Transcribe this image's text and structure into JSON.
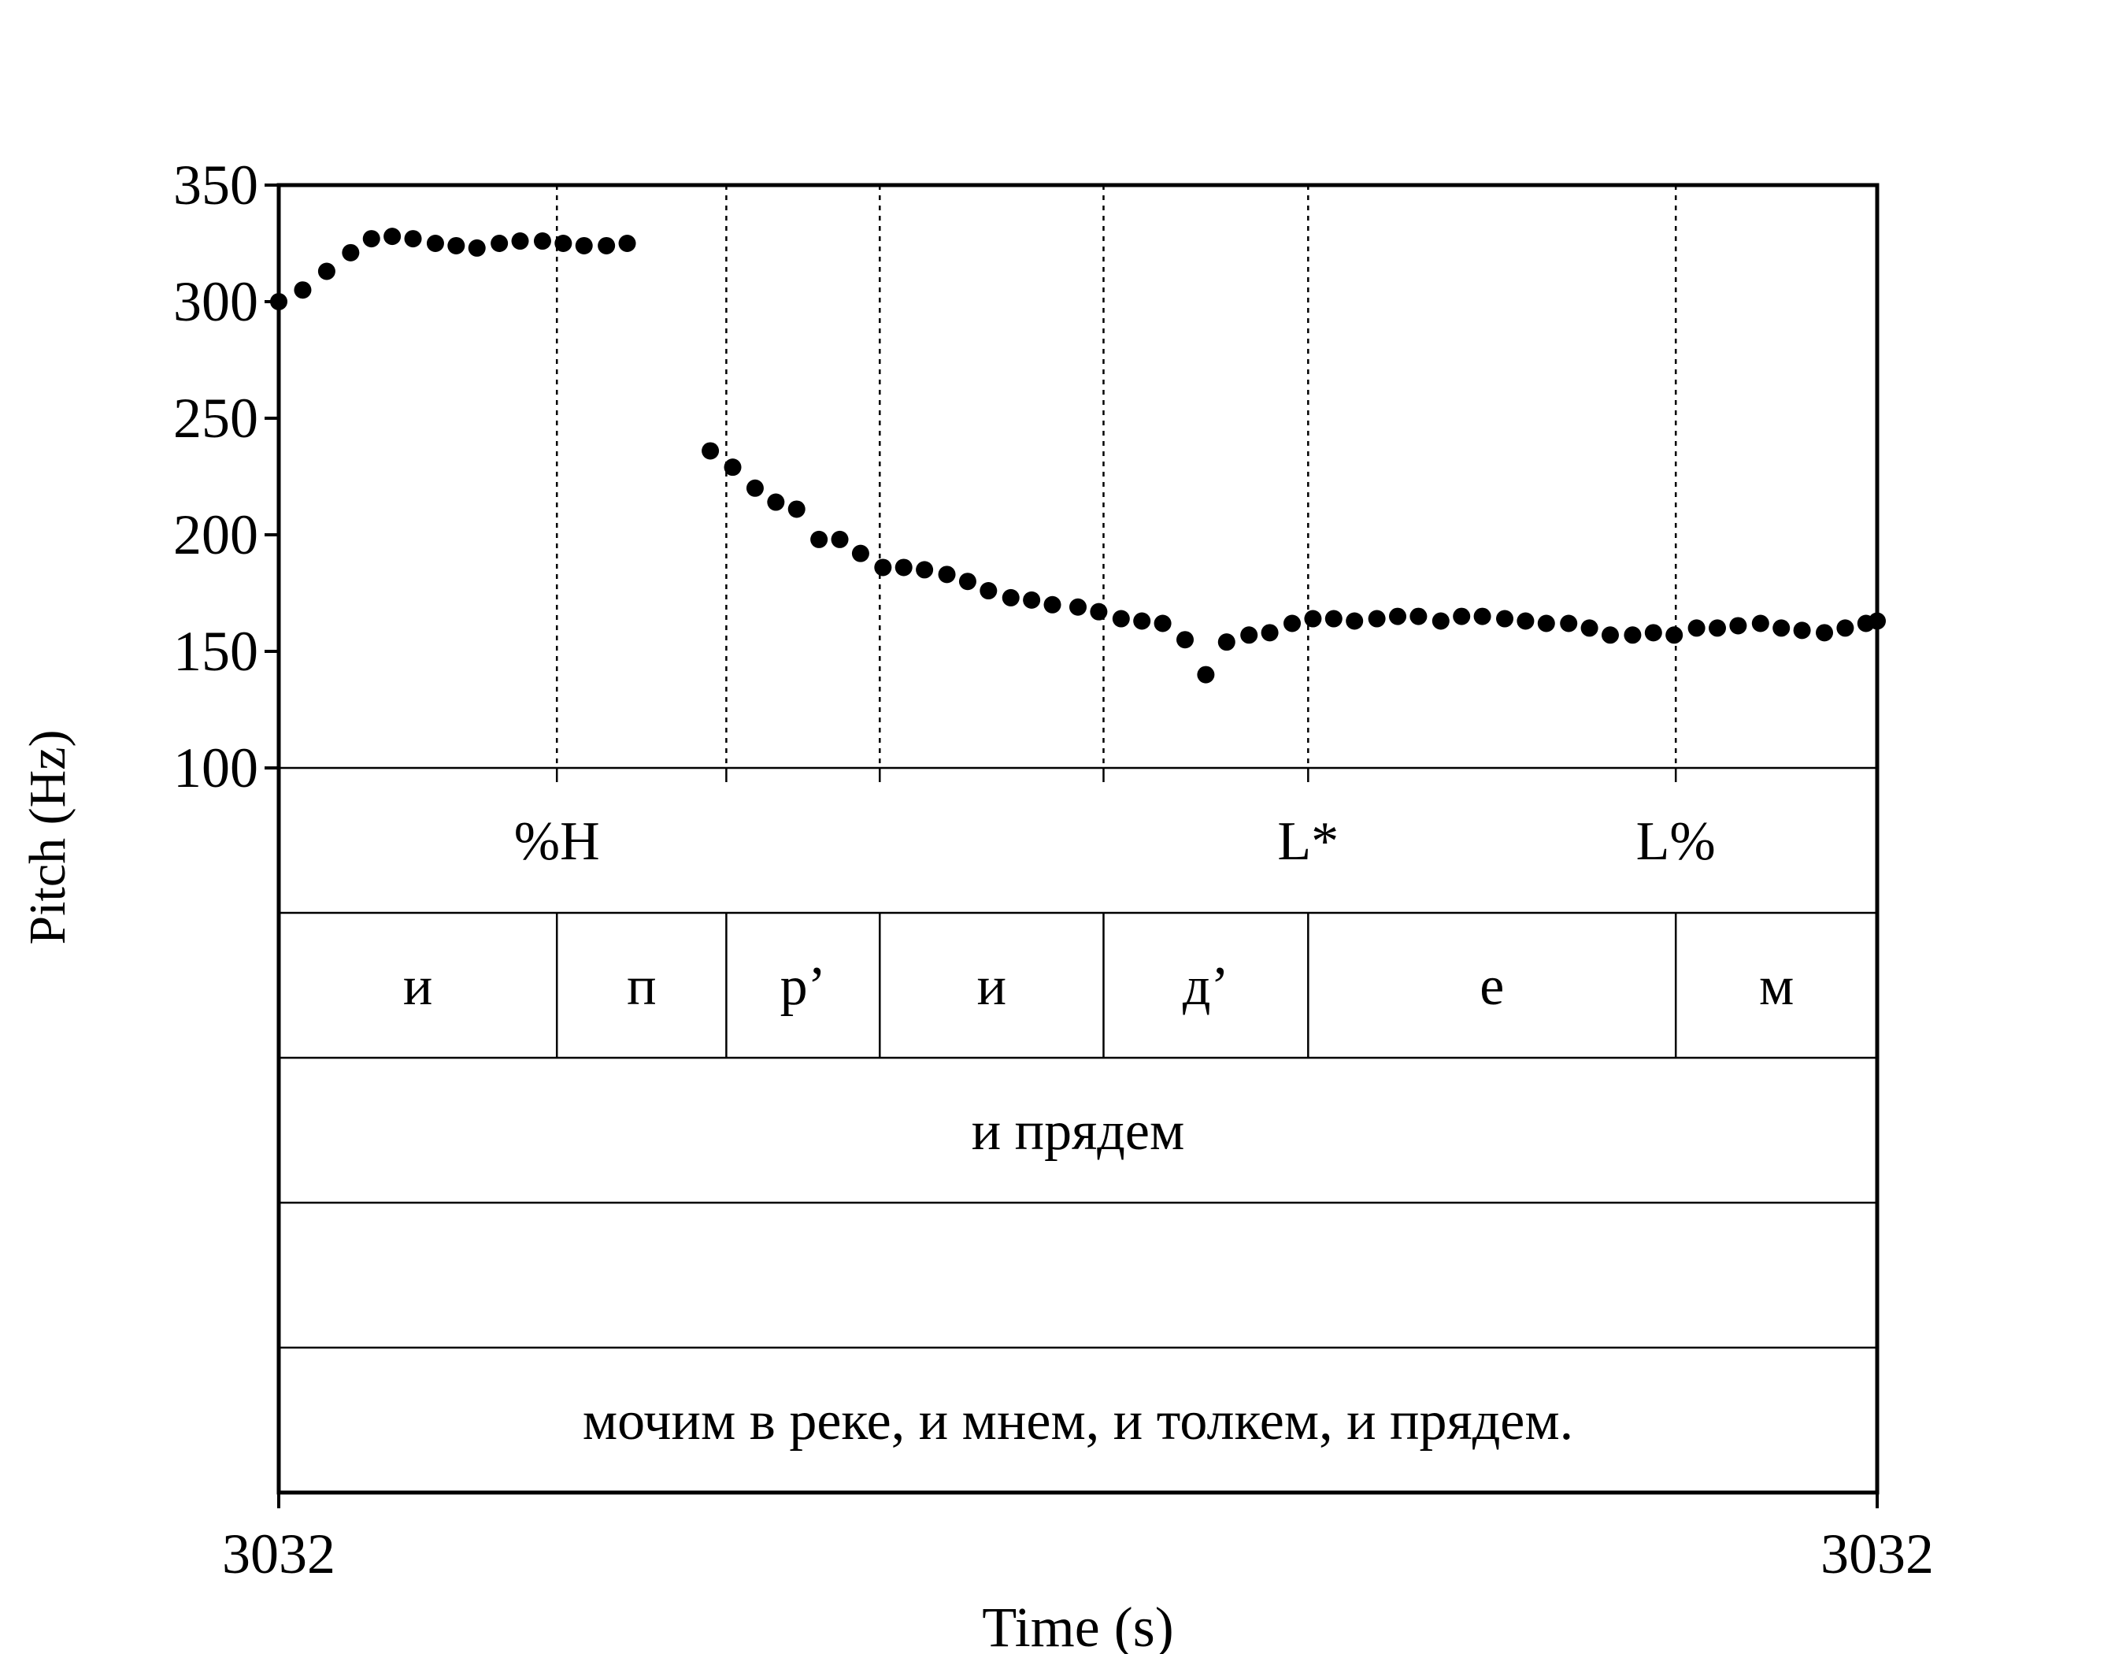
{
  "chart_data": {
    "type": "scatter",
    "xlabel": "Time (s)",
    "ylabel": "Pitch (Hz)",
    "ylim": [
      100,
      350
    ],
    "yticks": [
      "350",
      "300",
      "250",
      "200",
      "150",
      "100"
    ],
    "x_start_label": "3032",
    "x_end_label": "3032",
    "grid": false,
    "boundaries": [
      0.174,
      0.28,
      0.376,
      0.516,
      0.644,
      0.874
    ],
    "tiers": [
      {
        "name": "tones",
        "labels": [
          {
            "text": "%H",
            "at": 0.174
          },
          {
            "text": "L*",
            "at": 0.644
          },
          {
            "text": "L%",
            "at": 0.874
          }
        ]
      },
      {
        "name": "segments",
        "intervals": [
          {
            "text": "и",
            "start": 0.0,
            "end": 0.174
          },
          {
            "text": "п",
            "start": 0.174,
            "end": 0.28
          },
          {
            "text": "р’",
            "start": 0.28,
            "end": 0.376
          },
          {
            "text": "и",
            "start": 0.376,
            "end": 0.516
          },
          {
            "text": "д’",
            "start": 0.516,
            "end": 0.644
          },
          {
            "text": "е",
            "start": 0.644,
            "end": 0.874
          },
          {
            "text": "м",
            "start": 0.874,
            "end": 1.0
          }
        ]
      },
      {
        "name": "word",
        "intervals": [
          {
            "text": "и прядем",
            "start": 0.0,
            "end": 1.0
          }
        ]
      },
      {
        "name": "empty",
        "intervals": [
          {
            "text": "",
            "start": 0.0,
            "end": 1.0
          }
        ]
      },
      {
        "name": "phrase",
        "intervals": [
          {
            "text": "мочим в реке, и мнем, и толкем, и прядем.",
            "start": 0.0,
            "end": 1.0
          }
        ]
      }
    ],
    "x": [
      0.0,
      0.015,
      0.03,
      0.045,
      0.058,
      0.071,
      0.084,
      0.098,
      0.111,
      0.124,
      0.138,
      0.151,
      0.165,
      0.178,
      0.191,
      0.205,
      0.218,
      0.27,
      0.284,
      0.298,
      0.311,
      0.324,
      0.338,
      0.351,
      0.364,
      0.378,
      0.391,
      0.404,
      0.418,
      0.431,
      0.444,
      0.458,
      0.471,
      0.484,
      0.5,
      0.513,
      0.527,
      0.54,
      0.553,
      0.567,
      0.58,
      0.593,
      0.607,
      0.62,
      0.634,
      0.647,
      0.66,
      0.673,
      0.687,
      0.7,
      0.713,
      0.727,
      0.74,
      0.753,
      0.767,
      0.78,
      0.793,
      0.807,
      0.82,
      0.833,
      0.847,
      0.86,
      0.873,
      0.887,
      0.9,
      0.913,
      0.927,
      0.94,
      0.953,
      0.967,
      0.98,
      0.993,
      1.0
    ],
    "y": [
      300,
      305,
      313,
      321,
      327,
      328,
      327,
      325,
      324,
      323,
      325,
      326,
      326,
      325,
      324,
      324,
      325,
      236,
      229,
      220,
      214,
      211,
      198,
      198,
      192,
      186,
      186,
      185,
      183,
      180,
      176,
      173,
      172,
      170,
      169,
      167,
      164,
      163,
      162,
      155,
      140,
      154,
      157,
      158,
      162,
      164,
      164,
      163,
      164,
      165,
      165,
      163,
      165,
      165,
      164,
      163,
      162,
      162,
      160,
      157,
      157,
      158,
      157,
      160,
      160,
      161,
      162,
      160,
      159,
      158,
      160,
      162,
      163
    ]
  }
}
